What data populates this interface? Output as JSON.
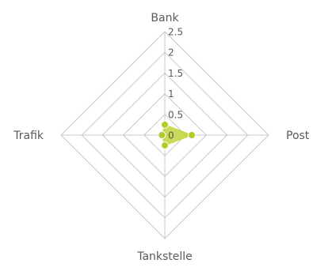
{
  "chart_data": {
    "type": "radar",
    "categories": [
      "Bank",
      "Post",
      "Tankstelle",
      "Trafik"
    ],
    "series": [
      {
        "values": [
          0.25,
          0.65,
          0.25,
          0.07
        ],
        "color": "#b5c927"
      }
    ],
    "ylim": [
      0,
      2.5
    ],
    "tick_labels": [
      "0",
      "0.5",
      "1",
      "1.5",
      "2",
      "2.5"
    ],
    "grid": true,
    "colors": {
      "grid": "#c8c8c8",
      "text": "#595959",
      "series_fill": "#c3d43c",
      "series_point": "#b5c927"
    }
  }
}
